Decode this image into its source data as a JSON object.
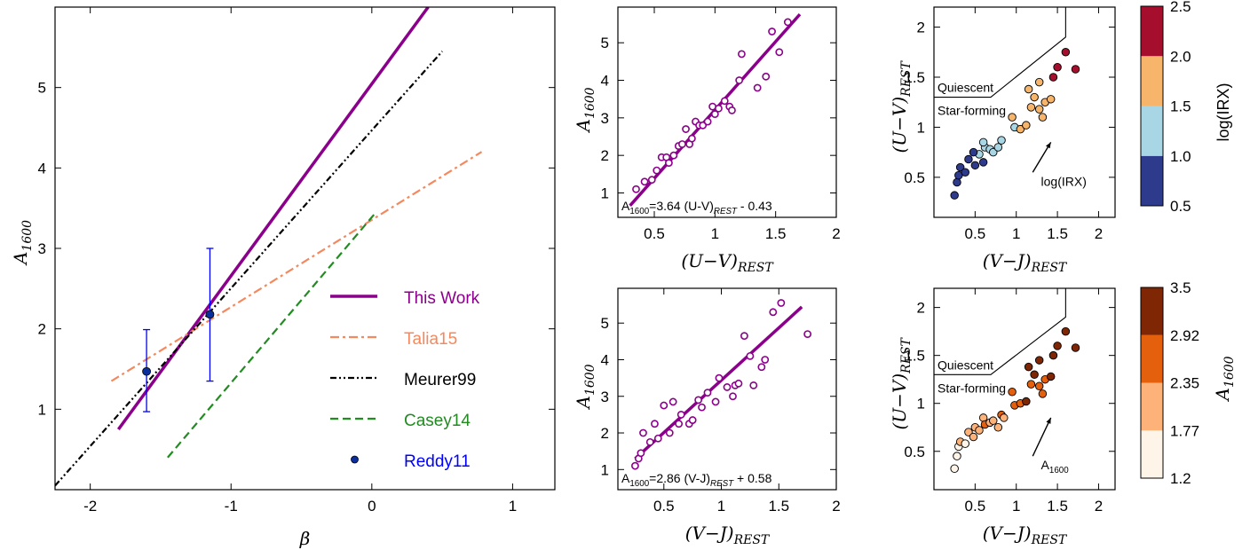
{
  "chart_data": [
    {
      "id": "main",
      "type": "line",
      "xlabel": "β",
      "ylabel": {
        "main": "A",
        "sub": "1600"
      },
      "xlim": [
        -2.25,
        1.3
      ],
      "ylim": [
        0,
        6.0
      ],
      "xticks": [
        -2,
        -1,
        0,
        1
      ],
      "xtick_labels": [
        "-2",
        "-1",
        "0",
        "1"
      ],
      "yticks": [
        1,
        2,
        3,
        4,
        5
      ],
      "ytick_labels": [
        "1",
        "2",
        "3",
        "4",
        "5"
      ],
      "legend_position": "lower-right",
      "series": [
        {
          "name": "This Work",
          "color": "#8b008b",
          "style": "solid",
          "width": 3.5,
          "x": [
            -1.8,
            0.4
          ],
          "y": [
            0.75,
            6.0
          ]
        },
        {
          "name": "Talia15",
          "color": "#f4895f",
          "style": "dashdot",
          "width": 2.2,
          "x": [
            -1.85,
            0.78
          ],
          "y": [
            1.35,
            4.2
          ]
        },
        {
          "name": "Meurer99",
          "color": "#000000",
          "style": "dashdotdot",
          "width": 2.2,
          "x": [
            -2.25,
            0.5
          ],
          "y": [
            0.05,
            5.45
          ]
        },
        {
          "name": "Casey14",
          "color": "#228b22",
          "style": "dashed",
          "width": 2.2,
          "x": [
            -1.45,
            0.03
          ],
          "y": [
            0.4,
            3.45
          ]
        },
        {
          "name": "Reddy11",
          "type": "errorbar",
          "color": "#0000ff",
          "x": [
            -1.6,
            -1.15
          ],
          "y": [
            1.47,
            2.18
          ],
          "yerr_low": [
            0.5,
            0.83
          ],
          "yerr_high": [
            0.52,
            0.82
          ]
        }
      ]
    },
    {
      "id": "uv",
      "type": "scatter",
      "xlabel": {
        "main": "(U−V)",
        "sub": "REST"
      },
      "ylabel": {
        "main": "A",
        "sub": "1600"
      },
      "xlim": [
        0.2,
        2.0
      ],
      "ylim": [
        0.35,
        5.95
      ],
      "xticks": [
        0.5,
        1,
        1.5,
        2
      ],
      "xtick_labels": [
        "0.5",
        "1",
        "1.5",
        "2"
      ],
      "yticks": [
        1,
        2,
        3,
        4,
        5
      ],
      "ytick_labels": [
        "1",
        "2",
        "3",
        "4",
        "5"
      ],
      "fit": {
        "slope": 3.64,
        "intercept": -0.43,
        "xrange": [
          0.3,
          1.7
        ],
        "color": "#8b008b"
      },
      "fit_label": {
        "main": "A",
        "sub": "1600",
        "rest": "=3.64 (U-V)",
        "sub2": "REST",
        "tail": " - 0.43"
      },
      "points": [
        [
          0.35,
          1.1
        ],
        [
          0.42,
          1.3
        ],
        [
          0.48,
          1.35
        ],
        [
          0.52,
          1.6
        ],
        [
          0.56,
          1.95
        ],
        [
          0.6,
          1.95
        ],
        [
          0.62,
          1.8
        ],
        [
          0.66,
          2.0
        ],
        [
          0.7,
          2.25
        ],
        [
          0.73,
          2.3
        ],
        [
          0.76,
          2.7
        ],
        [
          0.79,
          2.3
        ],
        [
          0.81,
          2.45
        ],
        [
          0.84,
          2.9
        ],
        [
          0.87,
          2.8
        ],
        [
          0.9,
          2.8
        ],
        [
          0.94,
          2.9
        ],
        [
          0.98,
          3.3
        ],
        [
          1.0,
          3.1
        ],
        [
          1.03,
          3.25
        ],
        [
          1.08,
          3.45
        ],
        [
          1.12,
          3.3
        ],
        [
          1.14,
          3.2
        ],
        [
          1.2,
          4.0
        ],
        [
          1.22,
          4.7
        ],
        [
          1.35,
          3.8
        ],
        [
          1.42,
          4.1
        ],
        [
          1.47,
          5.3
        ],
        [
          1.53,
          4.75
        ],
        [
          1.6,
          5.55
        ]
      ]
    },
    {
      "id": "vj",
      "type": "scatter",
      "xlabel": {
        "main": "(V−J)",
        "sub": "REST"
      },
      "ylabel": {
        "main": "A",
        "sub": "1600"
      },
      "xlim": [
        0.1,
        2.0
      ],
      "ylim": [
        0.45,
        5.95
      ],
      "xticks": [
        0.5,
        1,
        1.5,
        2
      ],
      "xtick_labels": [
        "0.5",
        "1",
        "1.5",
        "2"
      ],
      "yticks": [
        1,
        2,
        3,
        4,
        5
      ],
      "ytick_labels": [
        "1",
        "2",
        "3",
        "4",
        "5"
      ],
      "fit": {
        "slope": 2.86,
        "intercept": 0.58,
        "xrange": [
          0.25,
          1.7
        ],
        "color": "#8b008b"
      },
      "fit_label": {
        "main": "A",
        "sub": "1600",
        "rest": "=2.86 (V-J)",
        "sub2": "REST",
        "tail": " + 0.58"
      },
      "points": [
        [
          0.25,
          1.1
        ],
        [
          0.28,
          1.3
        ],
        [
          0.3,
          1.45
        ],
        [
          0.32,
          2.0
        ],
        [
          0.38,
          1.75
        ],
        [
          0.42,
          2.25
        ],
        [
          0.45,
          1.85
        ],
        [
          0.5,
          2.75
        ],
        [
          0.55,
          2.0
        ],
        [
          0.58,
          2.85
        ],
        [
          0.63,
          2.25
        ],
        [
          0.65,
          2.5
        ],
        [
          0.72,
          2.25
        ],
        [
          0.75,
          2.35
        ],
        [
          0.8,
          2.9
        ],
        [
          0.83,
          2.7
        ],
        [
          0.88,
          3.1
        ],
        [
          0.95,
          2.85
        ],
        [
          0.98,
          3.5
        ],
        [
          1.05,
          3.25
        ],
        [
          1.1,
          3.0
        ],
        [
          1.12,
          3.3
        ],
        [
          1.15,
          3.35
        ],
        [
          1.2,
          4.65
        ],
        [
          1.25,
          4.1
        ],
        [
          1.28,
          3.3
        ],
        [
          1.35,
          3.8
        ],
        [
          1.38,
          4.0
        ],
        [
          1.45,
          5.3
        ],
        [
          1.52,
          5.55
        ],
        [
          1.75,
          4.7
        ]
      ]
    },
    {
      "id": "uvj_irx",
      "type": "scatter",
      "xlabel": {
        "main": "(V−J)",
        "sub": "REST"
      },
      "ylabel": {
        "main": "(U−V)",
        "sub": "REST"
      },
      "xlim": [
        0.0,
        2.2
      ],
      "ylim": [
        0.1,
        2.2
      ],
      "xticks": [
        0.5,
        1,
        1.5,
        2
      ],
      "xtick_labels": [
        "0.5",
        "1",
        "1.5",
        "2"
      ],
      "yticks": [
        0.5,
        1,
        1.5,
        2
      ],
      "ytick_labels": [
        "0.5",
        "1",
        "1.5",
        "2"
      ],
      "region_labels": {
        "quiescent": "Quiescent",
        "star_forming": "Star-forming"
      },
      "arrow_label": {
        "main": "log(IRX)",
        "sub": ""
      },
      "colorbar": {
        "label": "log(IRX)",
        "label_sub": "",
        "label_style": "italic-log",
        "ticks": [
          "0.5",
          "1.0",
          "1.5",
          "2.0",
          "2.5"
        ],
        "colors": [
          "#2e3a8c",
          "#a9d6e5",
          "#f7b56b",
          "#a50f2d"
        ]
      },
      "points": [
        [
          0.25,
          0.32,
          0
        ],
        [
          0.28,
          0.45,
          0
        ],
        [
          0.3,
          0.52,
          0
        ],
        [
          0.32,
          0.6,
          0
        ],
        [
          0.38,
          0.55,
          0
        ],
        [
          0.42,
          0.68,
          0
        ],
        [
          0.5,
          0.62,
          0
        ],
        [
          0.55,
          0.73,
          1
        ],
        [
          0.6,
          0.65,
          0
        ],
        [
          0.48,
          0.75,
          0
        ],
        [
          0.62,
          0.8,
          1
        ],
        [
          0.68,
          0.78,
          1
        ],
        [
          0.72,
          0.75,
          1
        ],
        [
          0.78,
          0.8,
          1
        ],
        [
          0.82,
          0.87,
          1
        ],
        [
          0.6,
          0.85,
          1
        ],
        [
          0.98,
          1.0,
          1
        ],
        [
          0.95,
          1.1,
          2
        ],
        [
          1.05,
          0.98,
          2
        ],
        [
          1.12,
          1.02,
          2
        ],
        [
          1.18,
          1.2,
          2
        ],
        [
          1.22,
          1.3,
          2
        ],
        [
          1.28,
          1.18,
          2
        ],
        [
          1.32,
          1.1,
          2
        ],
        [
          1.35,
          1.25,
          2
        ],
        [
          1.45,
          1.5,
          3
        ],
        [
          1.5,
          1.6,
          3
        ],
        [
          1.6,
          1.75,
          3
        ],
        [
          1.72,
          1.58,
          3
        ],
        [
          1.28,
          1.45,
          2
        ],
        [
          1.42,
          1.28,
          2
        ],
        [
          1.15,
          1.38,
          2
        ]
      ]
    },
    {
      "id": "uvj_a1600",
      "type": "scatter",
      "xlabel": {
        "main": "(V−J)",
        "sub": "REST"
      },
      "ylabel": {
        "main": "(U−V)",
        "sub": "REST"
      },
      "xlim": [
        0.0,
        2.2
      ],
      "ylim": [
        0.1,
        2.2
      ],
      "xticks": [
        0.5,
        1,
        1.5,
        2
      ],
      "xtick_labels": [
        "0.5",
        "1",
        "1.5",
        "2"
      ],
      "yticks": [
        0.5,
        1,
        1.5,
        2
      ],
      "ytick_labels": [
        "0.5",
        "1",
        "1.5",
        "2"
      ],
      "region_labels": {
        "quiescent": "Quiescent",
        "star_forming": "Star-forming"
      },
      "arrow_label": {
        "main": "A",
        "sub": "1600"
      },
      "colorbar": {
        "label": "A",
        "label_sub": "1600",
        "label_style": "italic-sub",
        "ticks": [
          "1.2",
          "1.77",
          "2.35",
          "2.92",
          "3.5"
        ],
        "colors": [
          "#fff4e8",
          "#fdb27a",
          "#e5600d",
          "#7f2704"
        ]
      },
      "points": [
        [
          0.25,
          0.32,
          0
        ],
        [
          0.28,
          0.45,
          0
        ],
        [
          0.3,
          0.55,
          0
        ],
        [
          0.32,
          0.6,
          1
        ],
        [
          0.38,
          0.58,
          0
        ],
        [
          0.42,
          0.7,
          1
        ],
        [
          0.48,
          0.65,
          1
        ],
        [
          0.5,
          0.75,
          1
        ],
        [
          0.55,
          0.72,
          1
        ],
        [
          0.6,
          0.85,
          1
        ],
        [
          0.62,
          0.78,
          2
        ],
        [
          0.68,
          0.8,
          1
        ],
        [
          0.72,
          0.82,
          1
        ],
        [
          0.78,
          0.75,
          1
        ],
        [
          0.82,
          0.88,
          2
        ],
        [
          0.85,
          0.85,
          1
        ],
        [
          0.98,
          0.98,
          2
        ],
        [
          0.95,
          1.12,
          2
        ],
        [
          1.05,
          1.0,
          2
        ],
        [
          1.12,
          1.02,
          3
        ],
        [
          1.18,
          1.2,
          2
        ],
        [
          1.22,
          1.3,
          3
        ],
        [
          1.28,
          1.18,
          2
        ],
        [
          1.32,
          1.1,
          2
        ],
        [
          1.35,
          1.25,
          2
        ],
        [
          1.45,
          1.5,
          3
        ],
        [
          1.5,
          1.6,
          3
        ],
        [
          1.6,
          1.75,
          3
        ],
        [
          1.72,
          1.58,
          3
        ],
        [
          1.28,
          1.45,
          3
        ],
        [
          1.42,
          1.28,
          3
        ],
        [
          1.15,
          1.38,
          3
        ]
      ]
    }
  ]
}
